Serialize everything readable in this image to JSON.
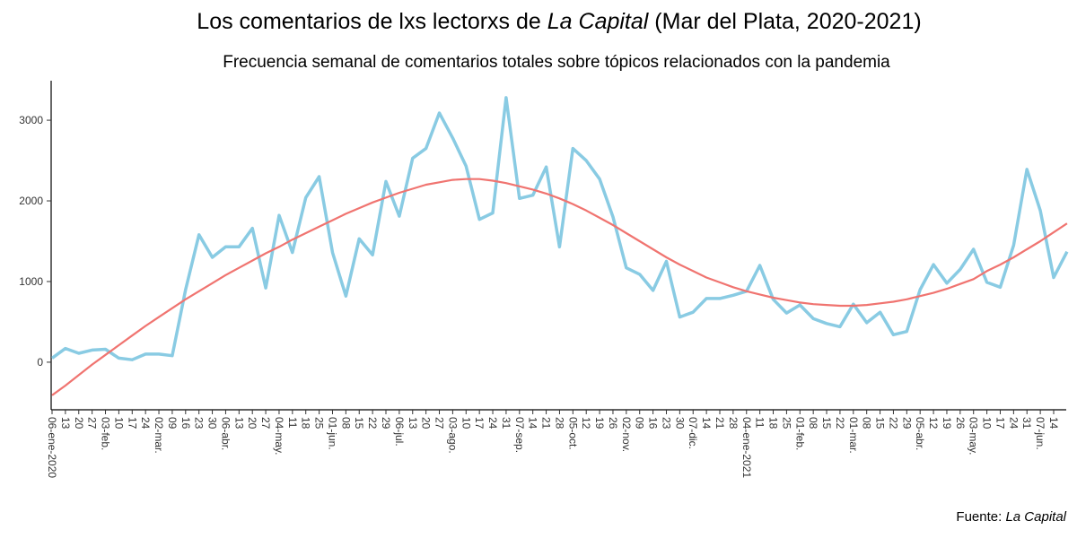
{
  "chart_data": {
    "type": "line",
    "title": [
      "Los comentarios de lxs lectorxs de ",
      "La Capital",
      " (Mar del Plata, 2020-2021)"
    ],
    "subtitle": "Frecuencia semanal de comentarios totales sobre tópicos relacionados con la pandemia",
    "caption": [
      "Fuente: ",
      "La Capital"
    ],
    "categories": [
      "06-ene-2020",
      "13",
      "20",
      "27",
      "03-feb.",
      "10",
      "17",
      "24",
      "02-mar.",
      "09",
      "16",
      "23",
      "30",
      "06-abr.",
      "13",
      "20",
      "27",
      "04-may.",
      "11",
      "18",
      "25",
      "01-jun.",
      "08",
      "15",
      "22",
      "29",
      "06-jul.",
      "13",
      "20",
      "27",
      "03-ago.",
      "10",
      "17",
      "24",
      "31",
      "07-sep.",
      "14",
      "21",
      "28",
      "05-oct.",
      "12",
      "19",
      "26",
      "02-nov.",
      "09",
      "16",
      "23",
      "30",
      "07-dic.",
      "14",
      "21",
      "28",
      "04-ene-2021",
      "11",
      "18",
      "25",
      "01-feb.",
      "08",
      "15",
      "22",
      "01-mar.",
      "08",
      "15",
      "22",
      "29",
      "05-abr.",
      "12",
      "19",
      "26",
      "03-may.",
      "10",
      "17",
      "24",
      "31",
      "07-jun.",
      "14",
      null
    ],
    "series": [
      {
        "color": "#89cbe3",
        "values": [
          50,
          170,
          110,
          150,
          160,
          50,
          30,
          100,
          100,
          80,
          900,
          1580,
          1300,
          1430,
          1430,
          1660,
          920,
          1820,
          1360,
          2040,
          2300,
          1360,
          820,
          1530,
          1330,
          2240,
          1810,
          2530,
          2650,
          3090,
          2780,
          2430,
          1770,
          1850,
          3280,
          2030,
          2070,
          2420,
          1430,
          2650,
          2500,
          2270,
          1800,
          1170,
          1090,
          890,
          1250,
          560,
          620,
          790,
          790,
          830,
          880,
          1200,
          780,
          610,
          710,
          540,
          480,
          440,
          720,
          490,
          620,
          340,
          380,
          900,
          1210,
          980,
          1150,
          1400,
          990,
          930,
          1450,
          2390,
          1880,
          1050,
          1370
        ]
      },
      {
        "color": "#f07470",
        "values": [
          -410,
          -290,
          -160,
          -30,
          90,
          210,
          330,
          450,
          560,
          670,
          780,
          880,
          980,
          1080,
          1170,
          1260,
          1350,
          1430,
          1520,
          1600,
          1680,
          1760,
          1840,
          1910,
          1980,
          2040,
          2100,
          2150,
          2200,
          2230,
          2260,
          2270,
          2270,
          2250,
          2220,
          2180,
          2140,
          2090,
          2030,
          1960,
          1880,
          1790,
          1700,
          1600,
          1500,
          1400,
          1300,
          1210,
          1130,
          1050,
          990,
          930,
          880,
          840,
          800,
          770,
          740,
          720,
          710,
          700,
          700,
          710,
          730,
          750,
          780,
          820,
          860,
          910,
          970,
          1030,
          1130,
          1210,
          1300,
          1400,
          1500,
          1610,
          1720
        ]
      }
    ],
    "ylim": [
      -590,
      3490
    ],
    "yticks": [
      0,
      1000,
      2000,
      3000
    ]
  }
}
